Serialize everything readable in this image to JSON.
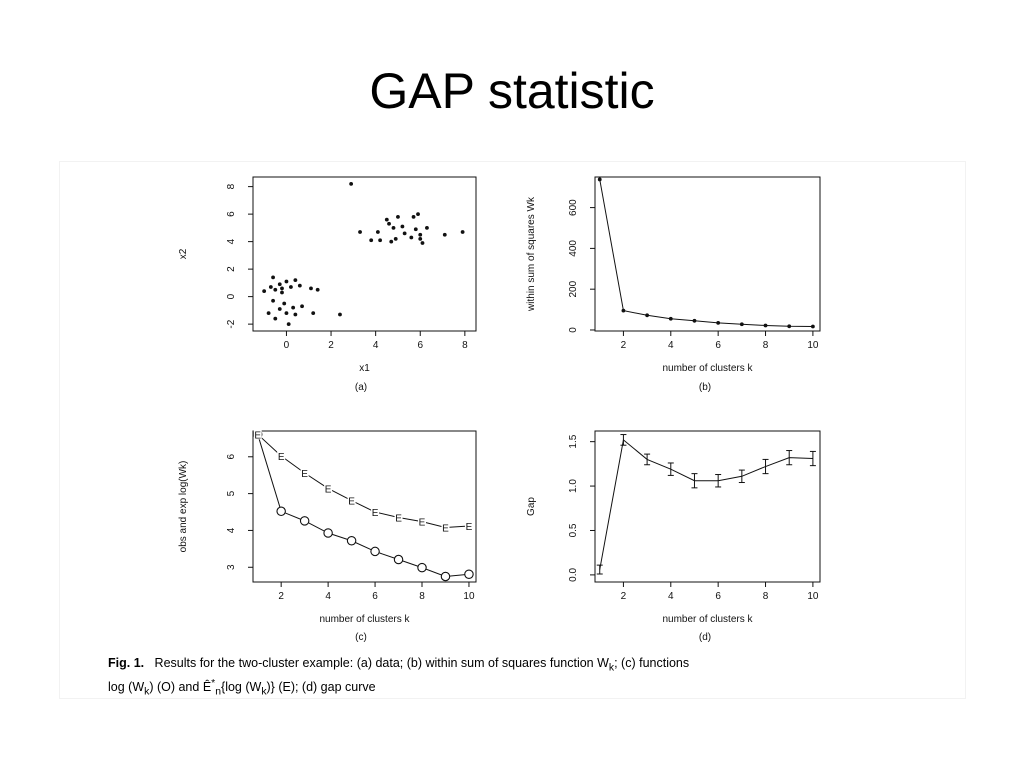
{
  "slide": {
    "title": "GAP statistic"
  },
  "caption": {
    "label": "Fig. 1.",
    "text_line1": "Results for the two-cluster example: (a) data; (b) within sum of squares function W",
    "wk_sub": "k",
    "text_line1b": "; (c) functions",
    "line2_a": "log (W",
    "line2_b": ") (O) and  Ê",
    "line2_c": "*",
    "line2_d": "n",
    "line2_e": "{log (W",
    "line2_f": ")} (E); (d) gap curve"
  },
  "chart_data": [
    {
      "id": "a",
      "type": "scatter",
      "panel_label": "(a)",
      "xlabel": "x1",
      "ylabel": "x2",
      "xlim": [
        -1.5,
        8.5
      ],
      "ylim": [
        -2.5,
        8.7
      ],
      "xticks": [
        0,
        2,
        4,
        6,
        8
      ],
      "yticks": [
        -2,
        0,
        2,
        4,
        6,
        8
      ],
      "points": [
        [
          -1.0,
          0.4
        ],
        [
          -0.7,
          0.7
        ],
        [
          -0.6,
          1.4
        ],
        [
          -0.5,
          0.5
        ],
        [
          -0.3,
          0.9
        ],
        [
          -0.2,
          0.6
        ],
        [
          0.0,
          1.1
        ],
        [
          0.2,
          0.7
        ],
        [
          0.4,
          1.2
        ],
        [
          0.6,
          0.8
        ],
        [
          1.1,
          0.6
        ],
        [
          1.4,
          0.5
        ],
        [
          -0.6,
          -0.3
        ],
        [
          -0.3,
          -0.9
        ],
        [
          -0.1,
          -0.5
        ],
        [
          0.3,
          -0.8
        ],
        [
          0.7,
          -0.7
        ],
        [
          1.2,
          -1.2
        ],
        [
          -0.8,
          -1.2
        ],
        [
          -0.5,
          -1.6
        ],
        [
          0.0,
          -1.2
        ],
        [
          0.4,
          -1.3
        ],
        [
          0.1,
          -2.0
        ],
        [
          -0.2,
          0.3
        ],
        [
          2.4,
          -1.3
        ],
        [
          2.9,
          8.2
        ],
        [
          3.3,
          4.7
        ],
        [
          3.8,
          4.1
        ],
        [
          4.1,
          4.7
        ],
        [
          4.2,
          4.1
        ],
        [
          4.6,
          5.3
        ],
        [
          4.8,
          5.0
        ],
        [
          4.9,
          4.2
        ],
        [
          5.0,
          5.8
        ],
        [
          5.2,
          5.1
        ],
        [
          5.3,
          4.6
        ],
        [
          4.7,
          4.0
        ],
        [
          5.6,
          4.3
        ],
        [
          5.7,
          5.8
        ],
        [
          5.8,
          4.9
        ],
        [
          5.9,
          6.0
        ],
        [
          6.0,
          4.5
        ],
        [
          6.1,
          3.9
        ],
        [
          6.3,
          5.0
        ],
        [
          6.0,
          4.2
        ],
        [
          7.1,
          4.5
        ],
        [
          7.9,
          4.7
        ],
        [
          4.5,
          5.6
        ]
      ]
    },
    {
      "id": "b",
      "type": "line",
      "panel_label": "(b)",
      "xlabel": "number of clusters k",
      "ylabel": "within sum of squares Wk",
      "xlim": [
        0.8,
        10.3
      ],
      "ylim": [
        -5,
        750
      ],
      "xticks": [
        2,
        4,
        6,
        8,
        10
      ],
      "yticks": [
        0,
        200,
        400,
        600
      ],
      "x": [
        1,
        2,
        3,
        4,
        5,
        6,
        7,
        8,
        9,
        10
      ],
      "y": [
        738,
        95,
        72,
        55,
        45,
        35,
        28,
        22,
        18,
        17
      ]
    },
    {
      "id": "c",
      "type": "line",
      "panel_label": "(c)",
      "xlabel": "number of clusters k",
      "ylabel": "obs and exp log(Wk)",
      "xlim": [
        0.8,
        10.3
      ],
      "ylim": [
        2.6,
        6.7
      ],
      "xticks": [
        2,
        4,
        6,
        8,
        10
      ],
      "yticks": [
        3,
        4,
        5,
        6
      ],
      "x": [
        1,
        2,
        3,
        4,
        5,
        6,
        7,
        8,
        9,
        10
      ],
      "series": [
        {
          "marker": "O",
          "values": [
            6.61,
            4.52,
            4.26,
            3.93,
            3.72,
            3.43,
            3.21,
            2.99,
            2.75,
            2.81
          ]
        },
        {
          "marker": "E",
          "values": [
            6.61,
            6.02,
            5.56,
            5.14,
            4.81,
            4.5,
            4.35,
            4.24,
            4.08,
            4.12
          ]
        }
      ]
    },
    {
      "id": "d",
      "type": "line",
      "panel_label": "(d)",
      "xlabel": "number of clusters k",
      "ylabel": "Gap",
      "xlim": [
        0.8,
        10.3
      ],
      "ylim": [
        -0.08,
        1.62
      ],
      "xticks": [
        2,
        4,
        6,
        8,
        10
      ],
      "yticks": [
        0.0,
        0.5,
        1.0,
        1.5
      ],
      "ytick_labels": [
        "0.0",
        "0.5",
        "1.0",
        "1.5"
      ],
      "x": [
        1,
        2,
        3,
        4,
        5,
        6,
        7,
        8,
        9,
        10
      ],
      "y": [
        0.06,
        1.52,
        1.3,
        1.19,
        1.06,
        1.06,
        1.11,
        1.22,
        1.32,
        1.31
      ],
      "err": [
        0.05,
        0.06,
        0.06,
        0.07,
        0.08,
        0.07,
        0.07,
        0.08,
        0.08,
        0.08
      ]
    }
  ]
}
